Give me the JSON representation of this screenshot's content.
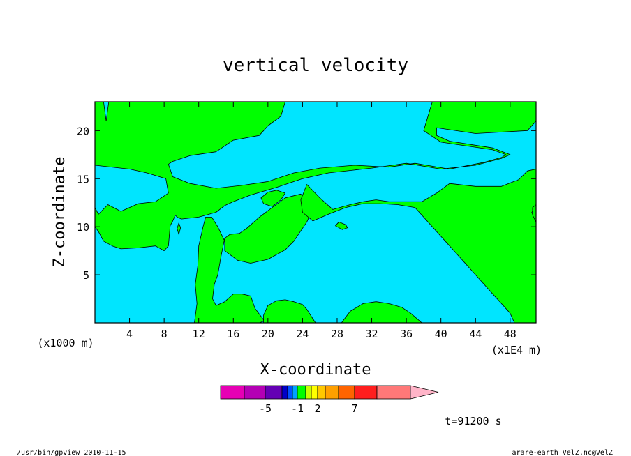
{
  "chart_data": {
    "type": "heatmap",
    "title": "vertical velocity",
    "xlabel": "X-coordinate",
    "ylabel": "Z-coordinate",
    "x_unit_left": "(x1000 m)",
    "x_unit_right": "(x1E4 m)",
    "xlim": [
      0,
      51
    ],
    "ylim": [
      0,
      23
    ],
    "xticks": [
      4,
      8,
      12,
      16,
      20,
      24,
      28,
      32,
      36,
      40,
      44,
      48
    ],
    "yticks": [
      5,
      10,
      15,
      20
    ],
    "grid": false,
    "colors": {
      "negative": "#00e5ff",
      "positive": "#00ff00",
      "contour_line": "#000000"
    },
    "colorbar": {
      "colors": [
        "#e600b4",
        "#b400b4",
        "#6400b4",
        "#0000c8",
        "#0050ff",
        "#00a0ff",
        "#00ff00",
        "#c8ff00",
        "#ffff00",
        "#ffc800",
        "#ffa000",
        "#ff6400",
        "#ff1e1e",
        "#ff7878",
        "#ffb4c8"
      ],
      "labels": [
        "-5",
        "-1",
        "2",
        "7"
      ]
    },
    "green_regions": [
      [
        [
          0,
          0
        ],
        [
          0,
          12
        ],
        [
          0.4,
          11.3
        ],
        [
          1.5,
          12.3
        ],
        [
          3,
          11.6
        ],
        [
          5,
          12.4
        ],
        [
          7,
          12.6
        ],
        [
          8.5,
          13.5
        ],
        [
          8.2,
          15
        ],
        [
          6,
          15.6
        ],
        [
          4,
          16
        ],
        [
          0,
          16.4
        ],
        [
          0,
          20
        ],
        [
          0,
          23
        ],
        [
          1,
          23
        ],
        [
          1.3,
          21
        ],
        [
          1.6,
          23
        ],
        [
          22,
          23
        ],
        [
          21.5,
          21.5
        ],
        [
          20,
          20.5
        ],
        [
          19,
          19.5
        ],
        [
          16,
          19
        ],
        [
          14,
          17.8
        ],
        [
          11,
          17.4
        ],
        [
          9,
          16.8
        ],
        [
          8.5,
          16.5
        ],
        [
          9,
          15.2
        ],
        [
          11,
          14.5
        ],
        [
          14,
          14
        ],
        [
          17,
          14.3
        ],
        [
          20,
          14.7
        ],
        [
          23,
          15.6
        ],
        [
          26,
          16.1
        ],
        [
          30,
          16.4
        ],
        [
          34,
          16.2
        ],
        [
          37,
          16.6
        ],
        [
          41,
          16
        ],
        [
          45,
          16.7
        ],
        [
          47,
          17.2
        ],
        [
          47.5,
          17.5
        ],
        [
          46,
          18
        ],
        [
          40,
          18.8
        ],
        [
          38,
          20
        ],
        [
          38.5,
          21.5
        ],
        [
          39,
          23
        ],
        [
          51,
          23
        ],
        [
          51,
          21
        ],
        [
          50,
          20
        ],
        [
          44,
          19.7
        ],
        [
          39.5,
          20.3
        ],
        [
          39.5,
          19.5
        ],
        [
          41,
          18.9
        ],
        [
          46,
          18.2
        ],
        [
          48,
          17.5
        ],
        [
          47,
          17.1
        ],
        [
          44,
          16.4
        ],
        [
          40,
          16
        ],
        [
          36,
          16.6
        ],
        [
          32,
          16.1
        ],
        [
          27,
          15.6
        ],
        [
          24,
          15
        ],
        [
          21,
          14.1
        ],
        [
          18,
          13.3
        ],
        [
          16,
          12.6
        ],
        [
          15,
          12.2
        ],
        [
          14,
          11.5
        ],
        [
          12,
          11
        ],
        [
          10,
          10.8
        ],
        [
          9.5,
          11
        ],
        [
          9.3,
          11.2
        ],
        [
          9,
          10.6
        ],
        [
          8.7,
          10.1
        ],
        [
          8.5,
          8
        ],
        [
          8,
          7.5
        ],
        [
          7,
          8
        ],
        [
          5,
          7.8
        ],
        [
          3,
          7.7
        ],
        [
          2,
          8
        ],
        [
          1,
          8.5
        ],
        [
          0.4,
          9.5
        ],
        [
          0,
          10
        ],
        [
          0,
          0
        ]
      ],
      [
        [
          11.5,
          0
        ],
        [
          11.8,
          2
        ],
        [
          11.6,
          4
        ],
        [
          11.9,
          6
        ],
        [
          12,
          8
        ],
        [
          12.5,
          10
        ],
        [
          12.8,
          11
        ],
        [
          13.5,
          11
        ],
        [
          14.2,
          10
        ],
        [
          15,
          8.5
        ],
        [
          15,
          7.5
        ],
        [
          16.5,
          6.5
        ],
        [
          18,
          6.2
        ],
        [
          20,
          6.6
        ],
        [
          22,
          7.6
        ],
        [
          23,
          8.5
        ],
        [
          24.5,
          10.5
        ],
        [
          25,
          11.5
        ],
        [
          24.5,
          12.7
        ],
        [
          23.8,
          13.4
        ],
        [
          22,
          13
        ],
        [
          20.5,
          12
        ],
        [
          19,
          11
        ],
        [
          17.5,
          9.8
        ],
        [
          16.7,
          9.3
        ],
        [
          15.6,
          9.2
        ],
        [
          15,
          8.8
        ],
        [
          14.6,
          7
        ],
        [
          14.2,
          5
        ],
        [
          13.8,
          4
        ],
        [
          13.6,
          2.5
        ],
        [
          14,
          1.8
        ],
        [
          15,
          2.2
        ],
        [
          16,
          3
        ],
        [
          17,
          3
        ],
        [
          18,
          2.8
        ],
        [
          18.5,
          1.5
        ],
        [
          19.6,
          0.2
        ],
        [
          19,
          0
        ],
        [
          11.5,
          0
        ]
      ],
      [
        [
          24.5,
          14.4
        ],
        [
          26,
          13
        ],
        [
          27,
          12.2
        ],
        [
          27.5,
          11.8
        ],
        [
          29.5,
          12.3
        ],
        [
          31,
          12.6
        ],
        [
          32.5,
          12.8
        ],
        [
          34,
          12.6
        ],
        [
          36,
          12.6
        ],
        [
          37.8,
          12.6
        ],
        [
          39.5,
          13.5
        ],
        [
          41,
          14.5
        ],
        [
          44,
          14.2
        ],
        [
          47,
          14.2
        ],
        [
          49,
          14.9
        ],
        [
          50,
          15.8
        ],
        [
          51,
          16
        ],
        [
          51,
          12
        ],
        [
          50.5,
          11.5
        ],
        [
          51,
          10.5
        ],
        [
          51,
          0
        ],
        [
          48.5,
          0
        ],
        [
          48,
          1
        ],
        [
          47,
          2
        ],
        [
          46,
          3
        ],
        [
          45,
          4
        ],
        [
          44,
          5
        ],
        [
          43,
          6
        ],
        [
          42,
          7
        ],
        [
          41,
          8
        ],
        [
          40,
          9
        ],
        [
          39,
          10
        ],
        [
          38,
          11
        ],
        [
          37,
          12
        ],
        [
          35,
          12.3
        ],
        [
          33,
          12.4
        ],
        [
          31,
          12.4
        ],
        [
          29,
          12
        ],
        [
          27,
          11.3
        ],
        [
          25.2,
          10.6
        ],
        [
          24,
          11.5
        ],
        [
          23.8,
          12.8
        ],
        [
          24.5,
          14.4
        ]
      ],
      [
        [
          19.5,
          0
        ],
        [
          19.5,
          0.8
        ],
        [
          20,
          1.8
        ],
        [
          21,
          2.3
        ],
        [
          22,
          2.4
        ],
        [
          23,
          2.2
        ],
        [
          24,
          1.9
        ],
        [
          24.5,
          1.4
        ],
        [
          25,
          0.7
        ],
        [
          25.5,
          0
        ],
        [
          19.5,
          0
        ]
      ],
      [
        [
          28.5,
          0
        ],
        [
          29.5,
          1.2
        ],
        [
          31,
          2
        ],
        [
          32.5,
          2.2
        ],
        [
          34,
          2
        ],
        [
          35.5,
          1.6
        ],
        [
          36.5,
          1
        ],
        [
          37.8,
          0
        ],
        [
          28.5,
          0
        ]
      ],
      [
        [
          22,
          13.5
        ],
        [
          21.5,
          12.8
        ],
        [
          20.5,
          12.1
        ],
        [
          19.5,
          12.4
        ],
        [
          19.2,
          13
        ],
        [
          20,
          13.6
        ],
        [
          21,
          13.8
        ],
        [
          22,
          13.5
        ]
      ],
      [
        [
          29,
          10.2
        ],
        [
          28.2,
          10.5
        ],
        [
          27.8,
          10.1
        ],
        [
          28.6,
          9.7
        ],
        [
          29.2,
          9.9
        ],
        [
          29,
          10.2
        ]
      ],
      [
        [
          9.5,
          9.8
        ],
        [
          9.7,
          9.2
        ],
        [
          9.9,
          9.9
        ],
        [
          9.7,
          10.4
        ],
        [
          9.5,
          9.8
        ]
      ],
      [
        [
          50.6,
          12
        ],
        [
          51,
          12.3
        ],
        [
          51,
          10.5
        ],
        [
          50.6,
          11.2
        ],
        [
          50.6,
          12
        ]
      ]
    ],
    "footer_left": "/usr/bin/gpview   2010-11-15",
    "footer_right": "arare-earth_VelZ.nc@VelZ",
    "time_label": "t=91200 s"
  }
}
